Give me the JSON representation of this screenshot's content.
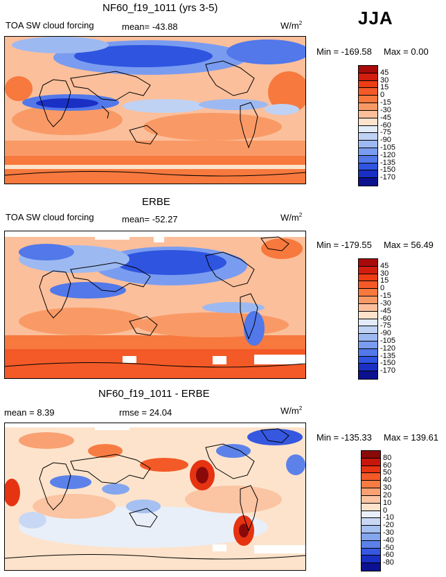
{
  "season": "JJA",
  "panels": [
    {
      "title": "NF60_f19_1011 (yrs 3-5)",
      "variable": "TOA SW cloud forcing",
      "mean_text": "mean=  -43.88",
      "units": "W/m",
      "units_exp": "2",
      "min_text": "Min = -169.58",
      "max_text": "Max =    0.00",
      "levels": [
        "45",
        "30",
        "15",
        "0",
        "-15",
        "-30",
        "-45",
        "-60",
        "-75",
        "-90",
        "-105",
        "-120",
        "-135",
        "-150",
        "-170"
      ],
      "colors": [
        "#a80a0a",
        "#d21e0e",
        "#ec3d14",
        "#f35a28",
        "#f7793e",
        "#f99a66",
        "#fbbf9b",
        "#fde3cb",
        "#e2ebf8",
        "#bfd2f4",
        "#9db9f1",
        "#7a9cf0",
        "#5278ea",
        "#2e54e0",
        "#1a2fc4",
        "#0c1190"
      ],
      "mean_value": -43.88,
      "min_value": -169.58,
      "max_value": 0.0
    },
    {
      "title": "ERBE",
      "variable": "TOA SW cloud forcing",
      "mean_text": "mean=  -52.27",
      "units": "W/m",
      "units_exp": "2",
      "min_text": "Min = -179.55",
      "max_text": "Max =   56.49",
      "levels": [
        "45",
        "30",
        "15",
        "0",
        "-15",
        "-30",
        "-45",
        "-60",
        "-75",
        "-90",
        "-105",
        "-120",
        "-135",
        "-150",
        "-170"
      ],
      "colors": [
        "#a80a0a",
        "#d21e0e",
        "#ec3d14",
        "#f35a28",
        "#f7793e",
        "#f99a66",
        "#fbbf9b",
        "#fde3cb",
        "#e2ebf8",
        "#bfd2f4",
        "#9db9f1",
        "#7a9cf0",
        "#5278ea",
        "#2e54e0",
        "#1a2fc4",
        "#0c1190"
      ],
      "mean_value": -52.27,
      "min_value": -179.55,
      "max_value": 56.49
    },
    {
      "title": "NF60_f19_1011 - ERBE",
      "mean_text": "mean =    8.39",
      "rmse_text": "rmse =   24.04",
      "units": "W/m",
      "units_exp": "2",
      "min_text": "Min = -135.33",
      "max_text": "Max = 139.61",
      "levels": [
        "80",
        "60",
        "50",
        "40",
        "30",
        "20",
        "10",
        "0",
        "-10",
        "-20",
        "-30",
        "-40",
        "-50",
        "-60",
        "-80"
      ],
      "colors": [
        "#8a0a0a",
        "#c8160c",
        "#e63312",
        "#f35a28",
        "#f77c44",
        "#f9a173",
        "#fbc4a2",
        "#fde3cb",
        "#e8eff9",
        "#c8d8f4",
        "#a6c0f1",
        "#84a6ef",
        "#5c82ea",
        "#3658e0",
        "#1a2fc4",
        "#0c1190"
      ],
      "mean_value": 8.39,
      "rmse_value": 24.04,
      "min_value": -135.33,
      "max_value": 139.61
    }
  ]
}
